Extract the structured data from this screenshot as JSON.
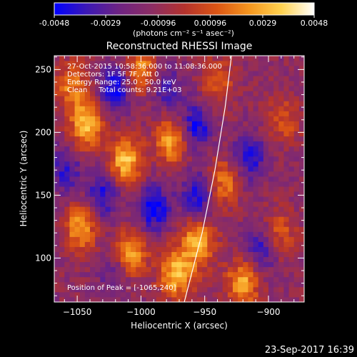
{
  "chart_data": {
    "type": "heatmap",
    "title": "Reconstructed RHESSI Image",
    "xlabel": "Heliocentric X (arcsec)",
    "ylabel": "Heliocentric Y (arcsec)",
    "xlim": [
      -1068,
      -872
    ],
    "ylim": [
      65,
      261
    ],
    "x_ticks": [
      -1050,
      -1000,
      -950,
      -900
    ],
    "y_ticks": [
      100,
      150,
      200,
      250
    ],
    "colorbar": {
      "min": -0.0048,
      "max": 0.0048,
      "ticks": [
        "-0.0048",
        "-0.0029",
        "-0.00096",
        "0.00096",
        "0.0029",
        "0.0048"
      ],
      "unit_label": "(photons cm⁻² s⁻¹ asec⁻²)"
    },
    "grid": false,
    "info": [
      "27-Oct-2015 10:58:36.000 to 11:08:36.000",
      "Detectors: 1F 5F 7F, Att 0",
      "Energy Range: 25.0 - 50.0 keV",
      "Clean     Total counts: 9.21E+03"
    ],
    "peak_label": "Position of Peak = [-1065,240]",
    "peak_position": [
      -1065,
      240
    ],
    "limb_curve": [
      [
        -966,
        65
      ],
      [
        -952,
        120
      ],
      [
        -942,
        170
      ],
      [
        -934,
        220
      ],
      [
        -929,
        261
      ]
    ],
    "bright_sources": [
      {
        "x": -1043,
        "y": 206,
        "value": 0.0044
      },
      {
        "x": -1012,
        "y": 177,
        "value": 0.0046
      },
      {
        "x": -1047,
        "y": 125,
        "value": 0.0038
      },
      {
        "x": -1008,
        "y": 104,
        "value": 0.0041
      },
      {
        "x": -972,
        "y": 88,
        "value": 0.0045
      },
      {
        "x": -955,
        "y": 113,
        "value": 0.0043
      },
      {
        "x": -920,
        "y": 80,
        "value": 0.004
      },
      {
        "x": -976,
        "y": 194,
        "value": 0.0039
      },
      {
        "x": -1000,
        "y": 250,
        "value": 0.0035
      },
      {
        "x": -1055,
        "y": 238,
        "value": 0.003
      },
      {
        "x": -935,
        "y": 160,
        "value": 0.0032
      },
      {
        "x": -892,
        "y": 120,
        "value": 0.0026
      },
      {
        "x": -940,
        "y": 240,
        "value": 0.0024
      },
      {
        "x": -888,
        "y": 210,
        "value": 0.0022
      }
    ],
    "dark_sources": [
      {
        "x": -1020,
        "y": 235,
        "value": -0.0034
      },
      {
        "x": -1030,
        "y": 150,
        "value": -0.003
      },
      {
        "x": -990,
        "y": 140,
        "value": -0.0036
      },
      {
        "x": -955,
        "y": 150,
        "value": -0.0032
      },
      {
        "x": -957,
        "y": 205,
        "value": -0.0033
      },
      {
        "x": -915,
        "y": 180,
        "value": -0.003
      },
      {
        "x": -905,
        "y": 108,
        "value": -0.0028
      },
      {
        "x": -1060,
        "y": 170,
        "value": -0.0026
      },
      {
        "x": -980,
        "y": 235,
        "value": -0.0022
      },
      {
        "x": -1020,
        "y": 90,
        "value": -0.0018
      }
    ]
  },
  "footer": {
    "timestamp": "23-Sep-2017 16:39"
  },
  "colors": {
    "background": "#000000",
    "axes": "#ffffff",
    "colormap": [
      "#0000ff",
      "#3c18b4",
      "#6e2382",
      "#8c2d64",
      "#b4322d",
      "#dc5514",
      "#f5961e",
      "#ffd250",
      "#ffffff"
    ]
  }
}
